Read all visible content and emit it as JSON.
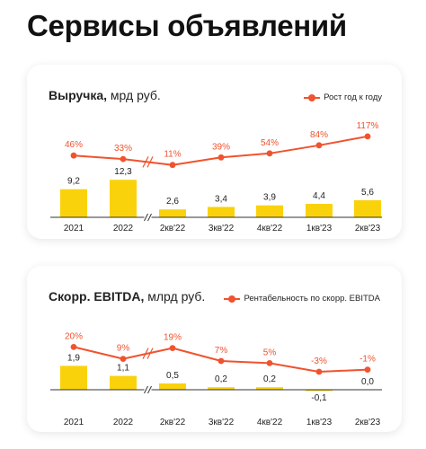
{
  "page": {
    "title": "Сервисы объявлений"
  },
  "colors": {
    "bar": "#f9d20c",
    "line": "#f0532e",
    "axis": "#333333"
  },
  "chart_data": [
    {
      "type": "bar",
      "title_bold": "Выручка,",
      "title_rest": " мрд руб.",
      "categories": [
        "2021",
        "2022",
        "2кв'22",
        "3кв'22",
        "4кв'22",
        "1кв'23",
        "2кв'23"
      ],
      "values": [
        9.2,
        12.3,
        2.6,
        3.4,
        3.9,
        4.4,
        5.6
      ],
      "value_labels": [
        "9,2",
        "12,3",
        "2,6",
        "3,4",
        "3,9",
        "4,4",
        "5,6"
      ],
      "line_series": {
        "name": "Рост год к году",
        "values": [
          46,
          33,
          11,
          39,
          54,
          84,
          117
        ],
        "labels": [
          "46%",
          "33%",
          "11%",
          "39%",
          "54%",
          "84%",
          "117%"
        ]
      },
      "axis_break_after_index": 1,
      "legend_position": "top-right"
    },
    {
      "type": "bar",
      "title_bold": "Скорр. EBITDA,",
      "title_rest": " млрд руб.",
      "categories": [
        "2021",
        "2022",
        "2кв'22",
        "3кв'22",
        "4кв'22",
        "1кв'23",
        "2кв'23"
      ],
      "values": [
        1.9,
        1.1,
        0.5,
        0.2,
        0.2,
        -0.1,
        0.0
      ],
      "value_labels": [
        "1,9",
        "1,1",
        "0,5",
        "0,2",
        "0,2",
        "-0,1",
        "0,0"
      ],
      "line_series": {
        "name": "Рентабельность по скорр. EBITDA",
        "values": [
          20,
          9,
          19,
          7,
          5,
          -3,
          -1
        ],
        "labels": [
          "20%",
          "9%",
          "19%",
          "7%",
          "5%",
          "-3%",
          "-1%"
        ]
      },
      "axis_break_after_index": 1,
      "legend_position": "top-right"
    }
  ]
}
